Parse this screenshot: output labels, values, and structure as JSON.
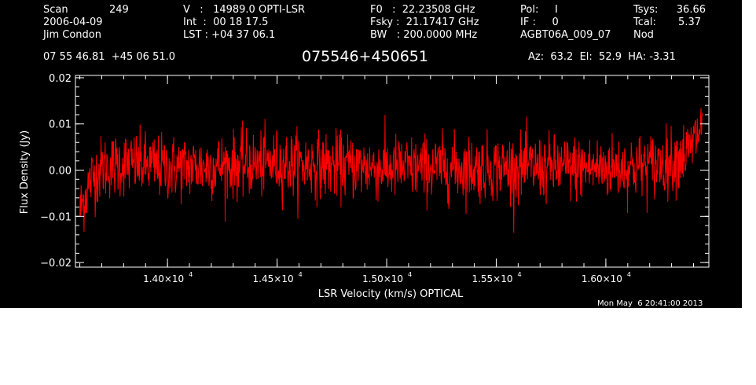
{
  "header": {
    "scan_label": "Scan",
    "scan_number": "249",
    "date": "2006-04-09",
    "observer": "Jim Condon",
    "velocity_line": "V   :   14989.0 OPTI-LSR",
    "int_line": "Int  :  00 18 17.5",
    "lst_line": "LST : +04 37 06.1",
    "f0_line": "F0   :  22.23508 GHz",
    "fsky_line": "Fsky :  21.17417 GHz",
    "bw_line": "BW   : 200.0000 MHz",
    "pol_line": "Pol:     I",
    "if_line": "IF :     0",
    "project": "AGBT06A_009_07",
    "tsys_label": "Tsys:",
    "tsys_value": "36.66",
    "tcal_label": "Tcal:",
    "tcal_value": "5.37",
    "mode": "Nod",
    "coordinates": "07 55 46.81  +45 06 51.0",
    "source_name": "075546+450651",
    "pointing": "Az:  63.2  El:  52.9  HA: -3.31"
  },
  "timestamp": "Mon May  6 20:41:00 2013",
  "colors": {
    "background": "#000000",
    "axes": "#ffffff",
    "trace": "#ff0000"
  },
  "chart_data": {
    "type": "line",
    "title": "",
    "xlabel": "LSR Velocity (km/s) OPTICAL",
    "ylabel": "Flux Density (Jy)",
    "xlim": [
      13580,
      16470
    ],
    "ylim": [
      -0.021,
      0.0205
    ],
    "x_data_range": [
      13600,
      16440
    ],
    "x_major_ticks": [
      {
        "value": 14000,
        "mantissa": "1.40×10",
        "exponent": "4"
      },
      {
        "value": 14500,
        "mantissa": "1.45×10",
        "exponent": "4"
      },
      {
        "value": 15000,
        "mantissa": "1.50×10",
        "exponent": "4"
      },
      {
        "value": 15500,
        "mantissa": "1.55×10",
        "exponent": "4"
      },
      {
        "value": 16000,
        "mantissa": "1.60×10",
        "exponent": "4"
      }
    ],
    "x_minor_step": 100,
    "y_major_ticks": [
      {
        "value": 0.02,
        "label": "0.02"
      },
      {
        "value": 0.01,
        "label": "0.01"
      },
      {
        "value": 0.0,
        "label": "0.00"
      },
      {
        "value": -0.01,
        "label": "−0.01"
      },
      {
        "value": -0.02,
        "label": "−0.02"
      }
    ],
    "y_minor_step": 0.002,
    "series": [
      {
        "color": "#ff0000",
        "n_channels": 1500,
        "noise_rms_jy": 0.0035,
        "baseline_x": [
          13600,
          13620,
          13650,
          13700,
          13800,
          14000,
          14500,
          15000,
          15500,
          16000,
          16200,
          16300,
          16380,
          16420,
          16440
        ],
        "baseline_y": [
          -0.009,
          -0.006,
          -0.002,
          0.0005,
          0.0015,
          0.0005,
          0.0015,
          0.0005,
          0.0005,
          0.0005,
          0.001,
          0.002,
          0.004,
          0.008,
          0.01
        ]
      }
    ]
  }
}
